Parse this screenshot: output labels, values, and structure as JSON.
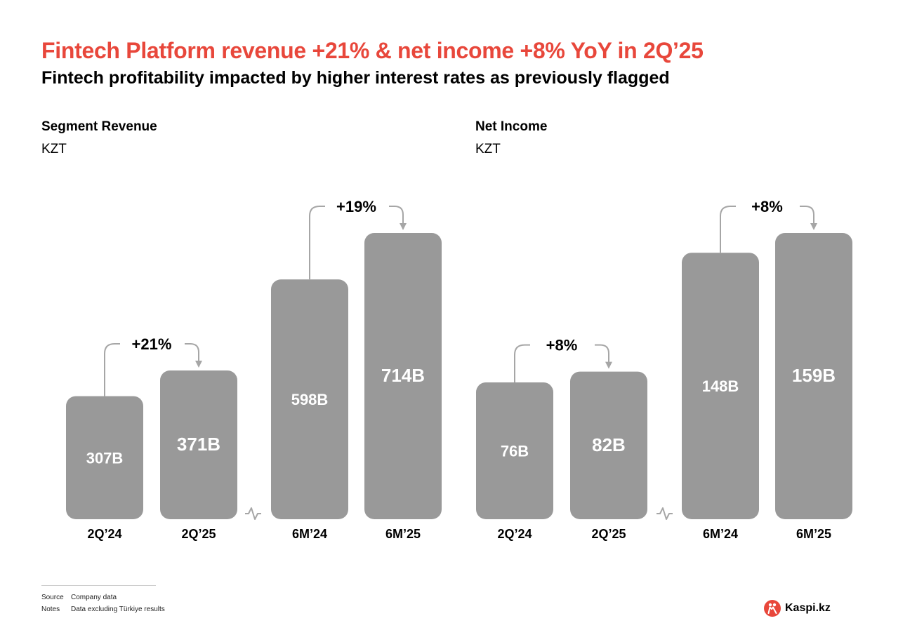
{
  "header": {
    "title": "Fintech Platform revenue +21% & net income +8% YoY in 2Q’25",
    "subtitle": "Fintech profitability impacted by higher interest rates as previously flagged"
  },
  "panels": {
    "revenue": {
      "title": "Segment Revenue",
      "unit": "KZT"
    },
    "income": {
      "title": "Net Income",
      "unit": "KZT"
    }
  },
  "chart_data": [
    {
      "type": "bar",
      "title": "Segment Revenue",
      "ylabel": "KZT",
      "categories": [
        "2Q’24",
        "2Q’25",
        "6M’24",
        "6M’25"
      ],
      "values": [
        307,
        371,
        598,
        714
      ],
      "labels": [
        "307B",
        "371B",
        "598B",
        "714B"
      ],
      "units": "B",
      "axis_break_between": [
        "2Q’25",
        "6M’24"
      ],
      "growth_annotations": [
        {
          "from": "2Q’24",
          "to": "2Q’25",
          "label": "+21%"
        },
        {
          "from": "6M’24",
          "to": "6M’25",
          "label": "+19%"
        }
      ],
      "bar_color": "#999999"
    },
    {
      "type": "bar",
      "title": "Net Income",
      "ylabel": "KZT",
      "categories": [
        "2Q’24",
        "2Q’25",
        "6M’24",
        "6M’25"
      ],
      "values": [
        76,
        82,
        148,
        159
      ],
      "labels": [
        "76B",
        "82B",
        "148B",
        "159B"
      ],
      "units": "B",
      "axis_break_between": [
        "2Q’25",
        "6M’24"
      ],
      "growth_annotations": [
        {
          "from": "2Q’24",
          "to": "2Q’25",
          "label": "+8%"
        },
        {
          "from": "6M’24",
          "to": "6M’25",
          "label": "+8%"
        }
      ],
      "bar_color": "#999999"
    }
  ],
  "footer": {
    "source_key": "Source",
    "source_value": "Company data",
    "notes_key": "Notes",
    "notes_value": "Data excluding Türkiye results"
  },
  "brand": {
    "name": "Kaspi.kz",
    "accent": "#e8473b",
    "logo_icon": "kaspi-logo-icon"
  }
}
